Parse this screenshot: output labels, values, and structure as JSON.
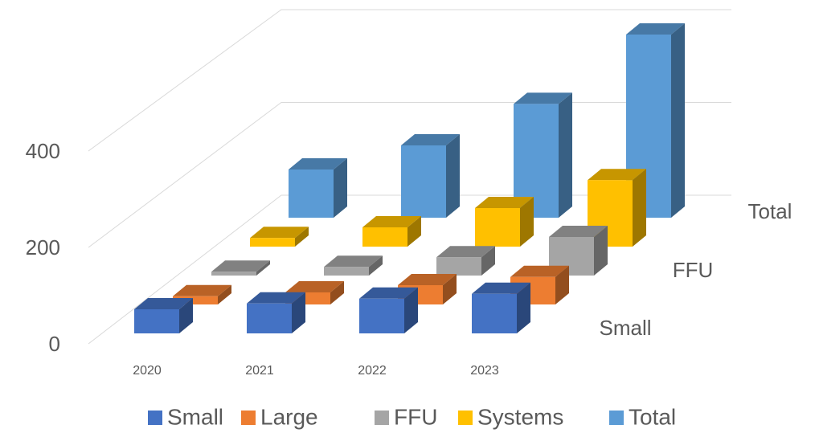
{
  "chart_data": {
    "type": "bar3d",
    "categories": [
      "2020",
      "2021",
      "2022",
      "2023"
    ],
    "series": [
      {
        "name": "Small",
        "color": "#4472c4",
        "values": [
          50,
          62,
          72,
          82
        ]
      },
      {
        "name": "Large",
        "color": "#ed7d31",
        "values": [
          17,
          25,
          40,
          57
        ]
      },
      {
        "name": "FFU",
        "color": "#a5a5a5",
        "values": [
          8,
          18,
          38,
          80
        ]
      },
      {
        "name": "Systems",
        "color": "#ffc000",
        "values": [
          18,
          40,
          80,
          138
        ]
      },
      {
        "name": "Total",
        "color": "#5b9bd5",
        "values": [
          100,
          150,
          236,
          380
        ]
      }
    ],
    "ylim": [
      0,
      400
    ],
    "yticks": [
      0,
      200,
      400
    ],
    "grid": true
  }
}
